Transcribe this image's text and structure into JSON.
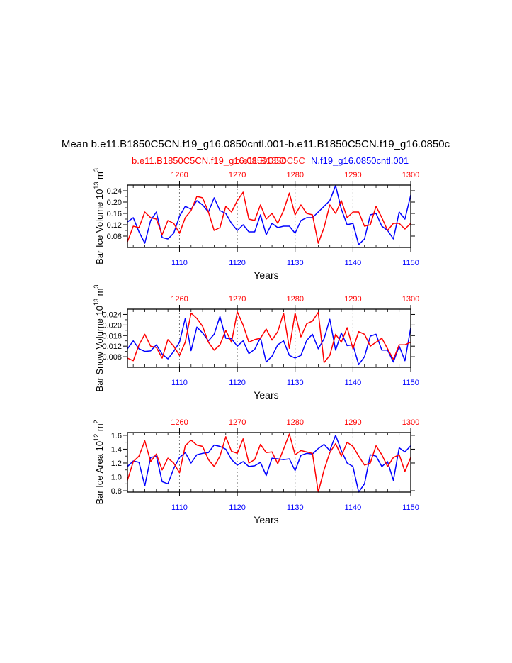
{
  "title": "Mean b.e11.B1850C5CN.f19_g16.0850cntl.001-b.e11.B1850C5CN.f19_g16.0850c",
  "subtitle_red": "b.e11.B1850C5CN.f19_g16.0850C5C",
  "subtitle_overlap": "b.e11.B1850C5C",
  "subtitle_blue": "N.f19_g16.0850cntl.001",
  "colors": {
    "red": "#ff0000",
    "blue": "#0000ff"
  },
  "chart_data": [
    {
      "type": "line",
      "ylabel": "Bar Ice Volume 10",
      "ylabel_exp": "13",
      "ylabel_unit": " m",
      "ylabel_unit_exp": "3",
      "xlabel": "Years",
      "xlim_bottom": [
        1101,
        1150
      ],
      "xlim_top": [
        1251,
        1300
      ],
      "ylim": [
        0.04,
        0.26
      ],
      "yticks": [
        0.08,
        0.12,
        0.16,
        0.2,
        0.24
      ],
      "ytick_labels": [
        "0.08",
        "0.12",
        "0.16",
        "0.20",
        "0.24"
      ],
      "xticks_bottom": [
        "1110",
        "1120",
        "1130",
        "1140",
        "1150"
      ],
      "xticks_top": [
        "1260",
        "1270",
        "1280",
        "1290",
        "1300"
      ],
      "series": [
        {
          "name": "blue",
          "values": [
            0.13,
            0.145,
            0.095,
            0.055,
            0.135,
            0.165,
            0.075,
            0.07,
            0.09,
            0.15,
            0.185,
            0.175,
            0.205,
            0.19,
            0.165,
            0.215,
            0.17,
            0.16,
            0.125,
            0.1,
            0.12,
            0.095,
            0.095,
            0.155,
            0.085,
            0.125,
            0.11,
            0.115,
            0.115,
            0.09,
            0.135,
            0.145,
            0.145,
            0.165,
            0.185,
            0.205,
            0.258,
            0.175,
            0.12,
            0.125,
            0.05,
            0.07,
            0.155,
            0.16,
            0.115,
            0.1,
            0.07,
            0.165,
            0.14,
            0.225
          ]
        },
        {
          "name": "red",
          "values": [
            0.06,
            0.115,
            0.11,
            0.165,
            0.145,
            0.14,
            0.085,
            0.135,
            0.125,
            0.09,
            0.145,
            0.17,
            0.22,
            0.215,
            0.165,
            0.1,
            0.11,
            0.185,
            0.165,
            0.205,
            0.235,
            0.14,
            0.135,
            0.19,
            0.14,
            0.16,
            0.125,
            0.17,
            0.232,
            0.155,
            0.19,
            0.16,
            0.155,
            0.055,
            0.11,
            0.19,
            0.16,
            0.205,
            0.145,
            0.165,
            0.165,
            0.115,
            0.12,
            0.185,
            0.145,
            0.1,
            0.125,
            0.125,
            0.105,
            0.125
          ]
        }
      ]
    },
    {
      "type": "line",
      "ylabel": "Bar Snow Volume 10",
      "ylabel_exp": "13",
      "ylabel_unit": " m",
      "ylabel_unit_exp": "3",
      "xlabel": "Years",
      "xlim_bottom": [
        1101,
        1150
      ],
      "xlim_top": [
        1251,
        1300
      ],
      "ylim": [
        0.004,
        0.026
      ],
      "yticks": [
        0.008,
        0.012,
        0.016,
        0.02,
        0.024
      ],
      "ytick_labels": [
        "0.008",
        "0.012",
        "0.016",
        "0.020",
        "0.024"
      ],
      "xticks_bottom": [
        "1110",
        "1120",
        "1130",
        "1140",
        "1150"
      ],
      "xticks_top": [
        "1260",
        "1270",
        "1280",
        "1290",
        "1300"
      ],
      "series": [
        {
          "name": "blue",
          "values": [
            0.011,
            0.014,
            0.011,
            0.01,
            0.0102,
            0.0125,
            0.009,
            0.0072,
            0.01,
            0.0135,
            0.0225,
            0.0103,
            0.0192,
            0.017,
            0.014,
            0.0165,
            0.0232,
            0.015,
            0.0148,
            0.012,
            0.014,
            0.0092,
            0.0108,
            0.0152,
            0.006,
            0.0082,
            0.0125,
            0.014,
            0.0085,
            0.0075,
            0.0085,
            0.0142,
            0.0165,
            0.011,
            0.0148,
            0.0222,
            0.0105,
            0.017,
            0.0122,
            0.0125,
            0.005,
            0.008,
            0.0158,
            0.0165,
            0.0105,
            0.0105,
            0.006,
            0.012,
            0.0065,
            0.019
          ]
        },
        {
          "name": "red",
          "values": [
            0.0075,
            0.0065,
            0.0125,
            0.0165,
            0.012,
            0.0115,
            0.0075,
            0.0145,
            0.012,
            0.0085,
            0.0135,
            0.0245,
            0.0225,
            0.0195,
            0.0135,
            0.0105,
            0.0125,
            0.018,
            0.0135,
            0.025,
            0.02,
            0.0135,
            0.0145,
            0.015,
            0.0185,
            0.0143,
            0.0175,
            0.0245,
            0.0112,
            0.0245,
            0.0155,
            0.0205,
            0.0215,
            0.0248,
            0.0058,
            0.0085,
            0.0165,
            0.0135,
            0.019,
            0.011,
            0.0175,
            0.0165,
            0.012,
            0.0135,
            0.015,
            0.011,
            0.007,
            0.0125,
            0.0125,
            0.0135
          ]
        }
      ]
    },
    {
      "type": "line",
      "ylabel": "Bar Ice Area 10",
      "ylabel_exp": "12",
      "ylabel_unit": " m",
      "ylabel_unit_exp": "2",
      "xlabel": "Years",
      "xlim_bottom": [
        1101,
        1150
      ],
      "xlim_top": [
        1251,
        1300
      ],
      "ylim": [
        0.78,
        1.64
      ],
      "yticks": [
        0.8,
        1.0,
        1.2,
        1.4,
        1.6
      ],
      "ytick_labels": [
        "0.8",
        "1.0",
        "1.2",
        "1.4",
        "1.6"
      ],
      "xticks_bottom": [
        "1110",
        "1120",
        "1130",
        "1140",
        "1150"
      ],
      "xticks_top": [
        "1260",
        "1270",
        "1280",
        "1290",
        "1300"
      ],
      "series": [
        {
          "name": "blue",
          "values": [
            1.15,
            1.23,
            1.21,
            0.87,
            1.28,
            1.3,
            0.93,
            0.9,
            1.12,
            1.28,
            1.35,
            1.2,
            1.32,
            1.34,
            1.35,
            1.46,
            1.44,
            1.4,
            1.25,
            1.17,
            1.22,
            1.15,
            1.16,
            1.21,
            1.02,
            1.27,
            1.26,
            1.25,
            1.26,
            1.09,
            1.31,
            1.34,
            1.33,
            1.41,
            1.47,
            1.38,
            1.6,
            1.38,
            1.2,
            1.15,
            0.78,
            0.9,
            1.32,
            1.3,
            1.15,
            1.22,
            0.95,
            1.42,
            1.36,
            1.45
          ]
        },
        {
          "name": "red",
          "values": [
            0.95,
            1.22,
            1.3,
            1.52,
            1.22,
            1.33,
            1.1,
            1.27,
            1.2,
            1.06,
            1.45,
            1.53,
            1.46,
            1.44,
            1.25,
            1.15,
            1.3,
            1.58,
            1.37,
            1.34,
            1.55,
            1.2,
            1.25,
            1.47,
            1.35,
            1.36,
            1.19,
            1.4,
            1.62,
            1.32,
            1.38,
            1.36,
            1.34,
            0.78,
            1.1,
            1.35,
            1.48,
            1.3,
            1.5,
            1.44,
            1.3,
            1.17,
            1.2,
            1.45,
            1.32,
            1.15,
            1.28,
            1.32,
            1.08,
            1.28
          ]
        }
      ]
    }
  ]
}
